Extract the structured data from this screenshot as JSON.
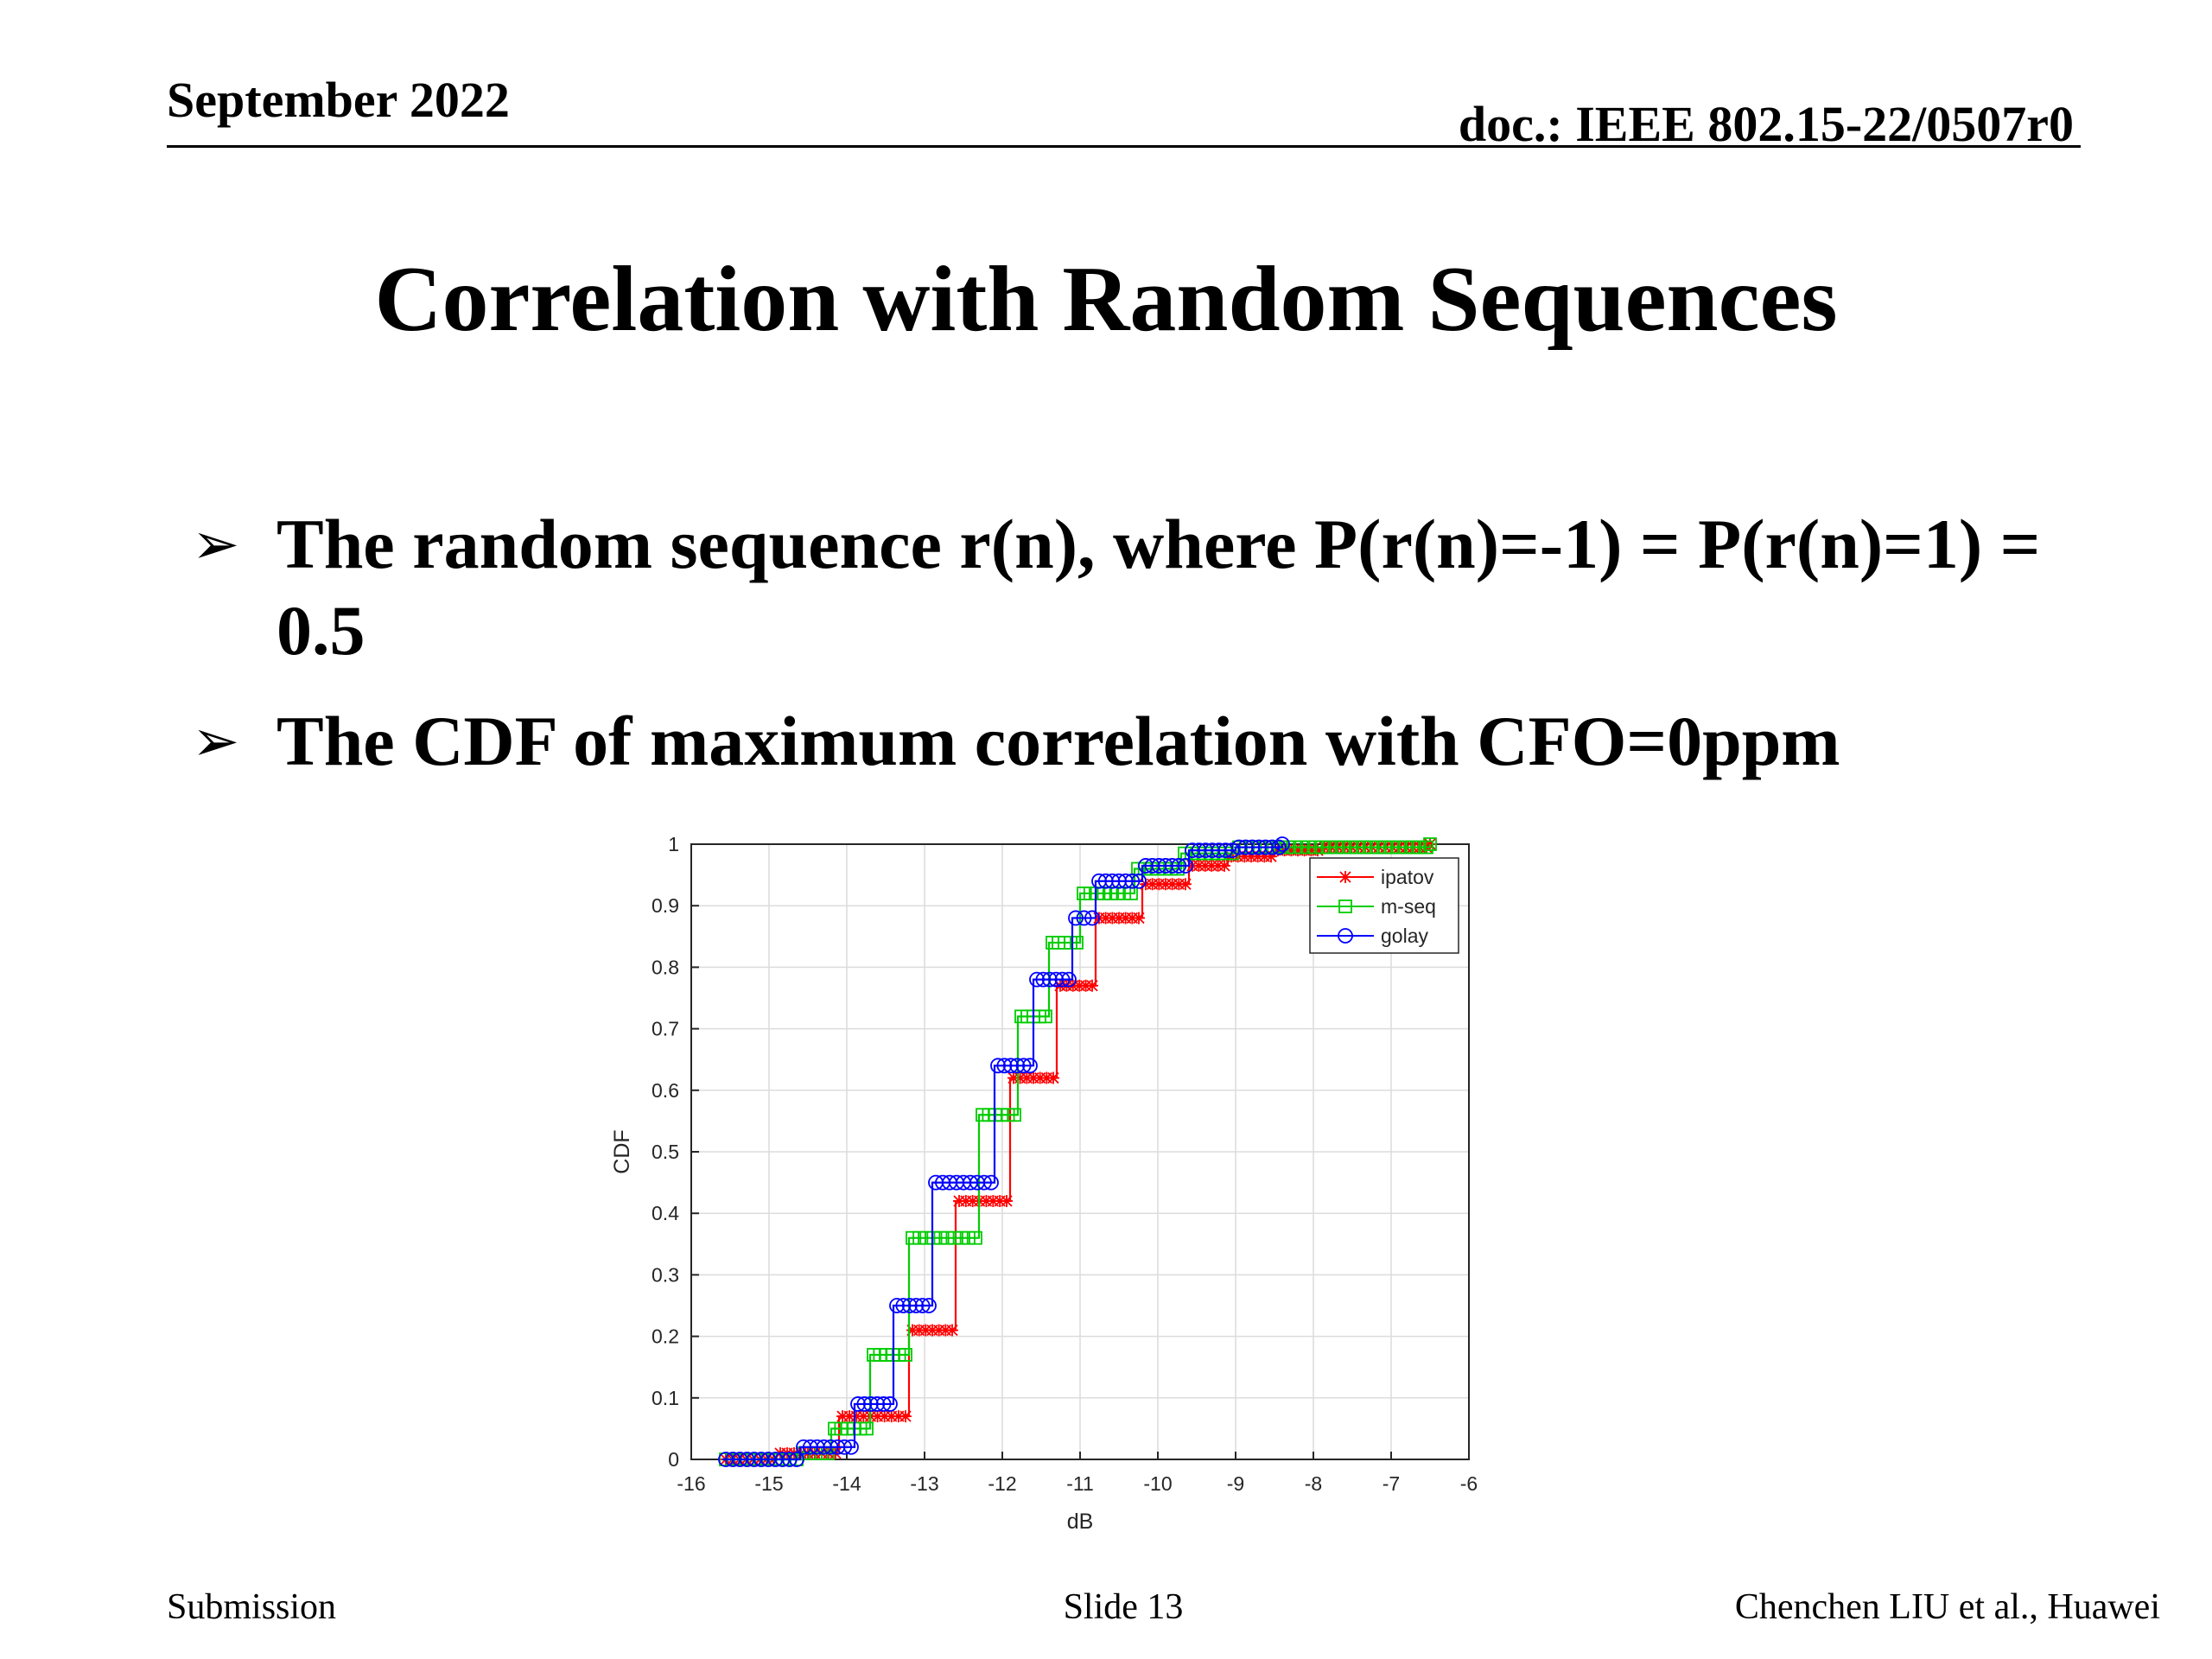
{
  "header": {
    "date": "September 2022",
    "doc_id": "doc.: IEEE 802.15-22/0507r0"
  },
  "title": "Correlation with Random Sequences",
  "bullets": [
    {
      "marker": "➢",
      "text": "The random sequence r(n), where P(r(n)=-1) = P(r(n)=1) = 0.5"
    },
    {
      "marker": "➢",
      "text": "The CDF of maximum correlation with CFO=0ppm"
    }
  ],
  "footer": {
    "left": "Submission",
    "center": "Slide 13",
    "right": "Chenchen LIU et al., Huawei"
  },
  "chart_data": {
    "type": "line",
    "title": "",
    "xlabel": "dB",
    "ylabel": "CDF",
    "xlim": [
      -16,
      -6
    ],
    "ylim": [
      0,
      1
    ],
    "xticks": [
      -16,
      -15,
      -14,
      -13,
      -12,
      -11,
      -10,
      -9,
      -8,
      -7,
      -6
    ],
    "yticks": [
      0,
      0.1,
      0.2,
      0.3,
      0.4,
      0.5,
      0.6,
      0.7,
      0.8,
      0.9,
      1
    ],
    "grid": true,
    "legend_position": "top-right",
    "series": [
      {
        "name": "ipatov",
        "color": "#ff0000",
        "marker": "asterisk",
        "steps": [
          [
            -15.6,
            0
          ],
          [
            -14.9,
            0.01
          ],
          [
            -14.1,
            0.07
          ],
          [
            -13.2,
            0.21
          ],
          [
            -12.6,
            0.42
          ],
          [
            -11.9,
            0.62
          ],
          [
            -11.3,
            0.77
          ],
          [
            -10.8,
            0.88
          ],
          [
            -10.2,
            0.935
          ],
          [
            -9.6,
            0.965
          ],
          [
            -9.1,
            0.98
          ],
          [
            -8.5,
            0.99
          ],
          [
            -7.9,
            0.995
          ],
          [
            -6.5,
            1.0
          ]
        ]
      },
      {
        "name": "m-seq",
        "color": "#00cc00",
        "marker": "square",
        "steps": [
          [
            -15.6,
            0
          ],
          [
            -14.6,
            0.01
          ],
          [
            -14.2,
            0.05
          ],
          [
            -13.7,
            0.17
          ],
          [
            -13.2,
            0.36
          ],
          [
            -12.3,
            0.56
          ],
          [
            -11.8,
            0.72
          ],
          [
            -11.4,
            0.84
          ],
          [
            -11.0,
            0.92
          ],
          [
            -10.3,
            0.96
          ],
          [
            -9.7,
            0.985
          ],
          [
            -9.0,
            0.995
          ],
          [
            -6.5,
            1.0
          ]
        ]
      },
      {
        "name": "golay",
        "color": "#0000ff",
        "marker": "circle",
        "steps": [
          [
            -15.6,
            0
          ],
          [
            -14.6,
            0.02
          ],
          [
            -13.9,
            0.09
          ],
          [
            -13.4,
            0.25
          ],
          [
            -12.9,
            0.45
          ],
          [
            -12.1,
            0.64
          ],
          [
            -11.6,
            0.78
          ],
          [
            -11.1,
            0.88
          ],
          [
            -10.8,
            0.94
          ],
          [
            -10.2,
            0.965
          ],
          [
            -9.6,
            0.99
          ],
          [
            -9.0,
            0.995
          ],
          [
            -8.4,
            1.0
          ]
        ]
      }
    ]
  }
}
